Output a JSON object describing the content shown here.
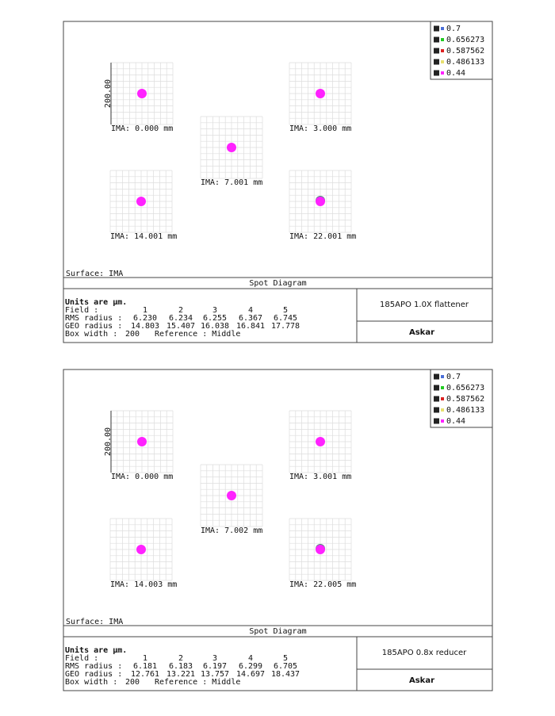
{
  "panels": [
    {
      "legend": [
        {
          "label": "0.7",
          "color": "#4a6fd8"
        },
        {
          "label": "0.656273",
          "color": "#22cc22"
        },
        {
          "label": "0.587562",
          "color": "#dd2222"
        },
        {
          "label": "0.486133",
          "color": "#e8e070"
        },
        {
          "label": "0.44",
          "color": "#ff22ff"
        }
      ],
      "axis_label": "200.00",
      "fields": [
        "IMA: 0.000 mm",
        "IMA: 3.000 mm",
        "IMA: 7.001 mm",
        "IMA: 14.001 mm",
        "IMA: 22.001 mm"
      ],
      "surface": "Surface: IMA",
      "title": "Spot Diagram",
      "units": "Units are µm.",
      "rows": [
        [
          "Field :",
          "1",
          "2",
          "3",
          "4",
          "5"
        ],
        [
          "RMS radius :",
          "6.230",
          "6.234",
          "6.255",
          "6.367",
          "6.745"
        ],
        [
          "GEO radius :",
          "14.803",
          "15.407",
          "16.038",
          "16.841",
          "17.778"
        ]
      ],
      "box_width": "Box width :",
      "box_value": "200",
      "reference": "Reference : Middle",
      "product": "185APO 1.0X flattener",
      "brand": "Askar"
    },
    {
      "legend": [
        {
          "label": "0.7",
          "color": "#4a6fd8"
        },
        {
          "label": "0.656273",
          "color": "#22cc22"
        },
        {
          "label": "0.587562",
          "color": "#dd2222"
        },
        {
          "label": "0.486133",
          "color": "#e8e070"
        },
        {
          "label": "0.44",
          "color": "#ff22ff"
        }
      ],
      "axis_label": "200.00",
      "fields": [
        "IMA: 0.000 mm",
        "IMA: 3.001 mm",
        "IMA: 7.002 mm",
        "IMA: 14.003 mm",
        "IMA: 22.005 mm"
      ],
      "surface": "Surface: IMA",
      "title": "Spot Diagram",
      "units": "Units are µm.",
      "rows": [
        [
          "Field :",
          "1",
          "2",
          "3",
          "4",
          "5"
        ],
        [
          "RMS radius :",
          "6.181",
          "6.183",
          "6.197",
          "6.299",
          "6.705"
        ],
        [
          "GEO radius :",
          "12.761",
          "13.221",
          "13.757",
          "14.697",
          "18.437"
        ]
      ],
      "box_width": "Box width :",
      "box_value": "200",
      "reference": "Reference : Middle",
      "product": "185APO 0.8x reducer",
      "brand": "Askar"
    }
  ]
}
